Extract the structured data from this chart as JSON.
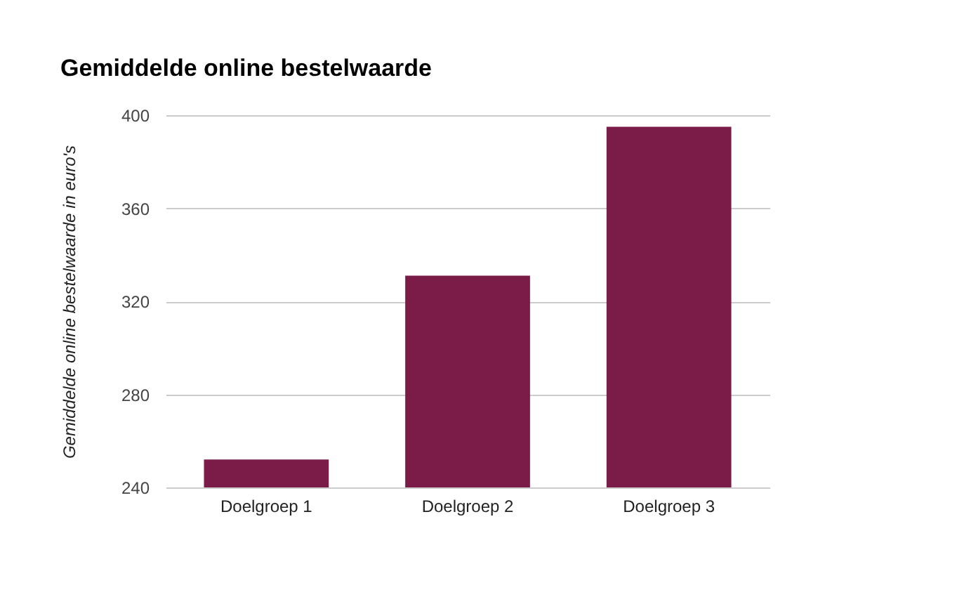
{
  "chart_data": {
    "type": "bar",
    "title": "Gemiddelde online bestelwaarde",
    "ylabel": "Gemiddelde online bestelwaarde in euro's",
    "categories": [
      "Doelgroep 1",
      "Doelgroep 2",
      "Doelgroep 3"
    ],
    "values": [
      252,
      331,
      395
    ],
    "color": "#7b1b48",
    "ylim": [
      240,
      400
    ],
    "yticks": [
      240,
      280,
      320,
      360,
      400
    ],
    "grid": "y"
  }
}
